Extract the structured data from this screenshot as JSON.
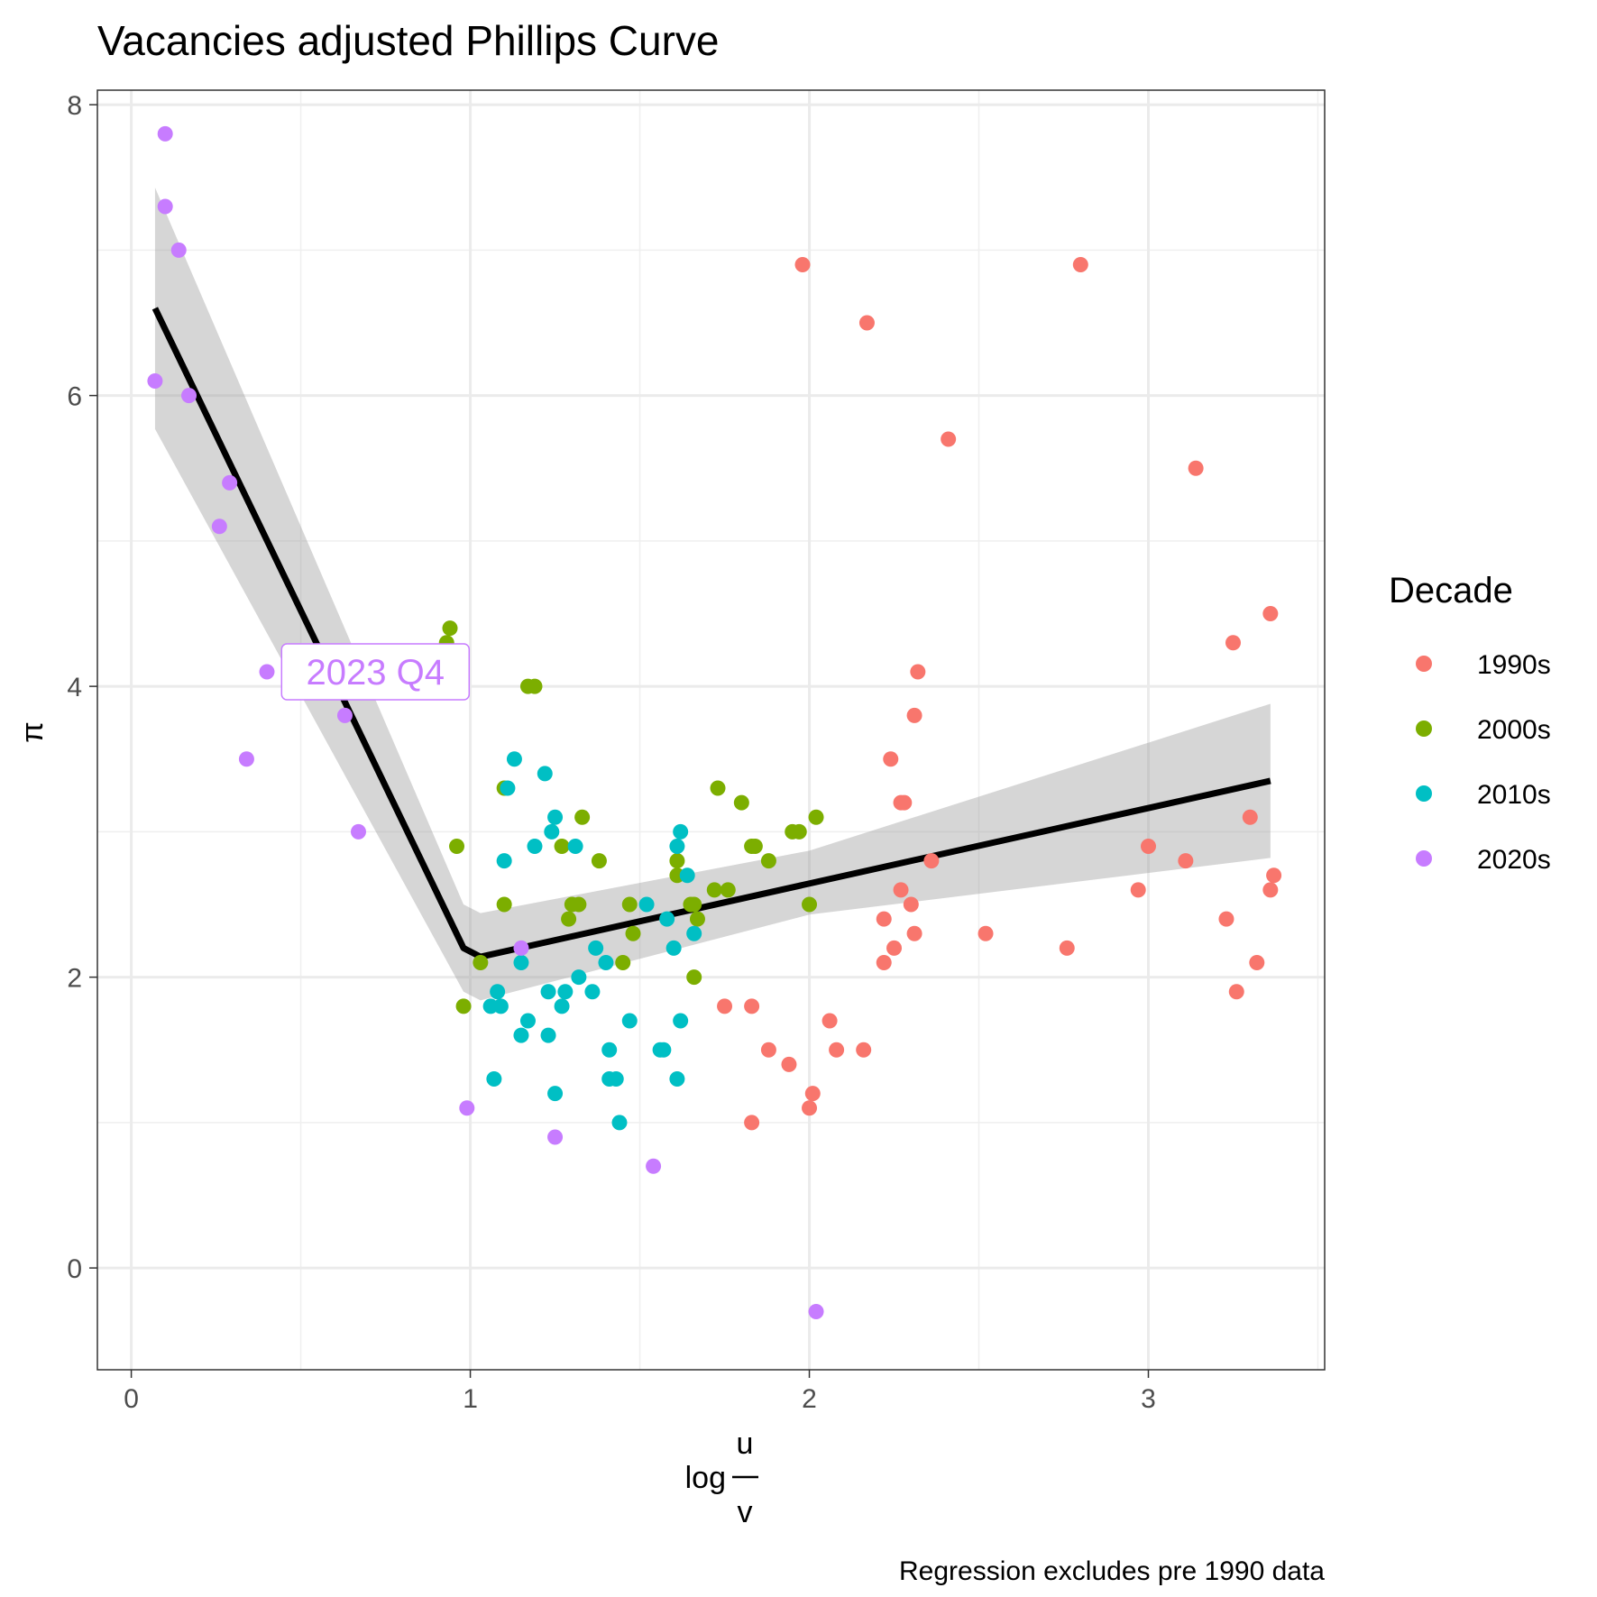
{
  "chart_data": {
    "type": "scatter",
    "title": "Vacancies adjusted Phillips Curve",
    "xlabel": {
      "prefix": "log",
      "numerator": "u",
      "denominator": "v"
    },
    "ylabel": "π",
    "caption": "Regression excludes pre 1990 data",
    "xlim": [
      -0.1,
      3.52
    ],
    "ylim": [
      -0.7,
      8.1
    ],
    "x_ticks": [
      0,
      1,
      2,
      3
    ],
    "x_tick_labels": [
      "0",
      "1",
      "2",
      "3"
    ],
    "y_ticks": [
      0,
      2,
      4,
      6,
      8
    ],
    "y_tick_labels": [
      "0",
      "2",
      "4",
      "6",
      "8"
    ],
    "grid": true,
    "legend": {
      "title": "Decade",
      "position": "right",
      "entries": [
        "1990s",
        "2000s",
        "2010s",
        "2020s"
      ]
    },
    "colors": {
      "1990s": "#F8766D",
      "2000s": "#7CAE00",
      "2010s": "#00BFC4",
      "2020s": "#C77CFF",
      "fit_line": "#000000",
      "ribbon": "#999999"
    },
    "series": [
      {
        "name": "1990s",
        "points": [
          [
            1.98,
            6.9
          ],
          [
            2.8,
            6.9
          ],
          [
            2.17,
            6.5
          ],
          [
            2.41,
            5.7
          ],
          [
            3.14,
            5.5
          ],
          [
            3.36,
            4.5
          ],
          [
            3.25,
            4.3
          ],
          [
            2.32,
            4.1
          ],
          [
            2.31,
            3.8
          ],
          [
            2.24,
            3.5
          ],
          [
            2.27,
            3.2
          ],
          [
            2.28,
            3.2
          ],
          [
            3.3,
            3.1
          ],
          [
            3.0,
            2.9
          ],
          [
            2.36,
            2.8
          ],
          [
            3.11,
            2.8
          ],
          [
            3.37,
            2.7
          ],
          [
            2.97,
            2.6
          ],
          [
            2.27,
            2.6
          ],
          [
            3.36,
            2.6
          ],
          [
            2.3,
            2.5
          ],
          [
            2.22,
            2.4
          ],
          [
            3.23,
            2.4
          ],
          [
            2.52,
            2.3
          ],
          [
            2.31,
            2.3
          ],
          [
            2.25,
            2.2
          ],
          [
            2.76,
            2.2
          ],
          [
            2.22,
            2.1
          ],
          [
            3.32,
            2.1
          ],
          [
            3.26,
            1.9
          ],
          [
            1.75,
            1.8
          ],
          [
            1.83,
            1.8
          ],
          [
            2.06,
            1.7
          ],
          [
            1.88,
            1.5
          ],
          [
            2.08,
            1.5
          ],
          [
            2.16,
            1.5
          ],
          [
            1.94,
            1.4
          ],
          [
            2.01,
            1.2
          ],
          [
            2.0,
            1.1
          ],
          [
            1.83,
            1.0
          ]
        ]
      },
      {
        "name": "2000s",
        "points": [
          [
            0.94,
            4.4
          ],
          [
            0.93,
            4.3
          ],
          [
            1.17,
            4.0
          ],
          [
            1.19,
            4.0
          ],
          [
            1.1,
            3.3
          ],
          [
            1.73,
            3.3
          ],
          [
            1.8,
            3.2
          ],
          [
            1.33,
            3.1
          ],
          [
            2.02,
            3.1
          ],
          [
            1.95,
            3.0
          ],
          [
            1.97,
            3.0
          ],
          [
            0.96,
            2.9
          ],
          [
            1.27,
            2.9
          ],
          [
            1.83,
            2.9
          ],
          [
            1.84,
            2.9
          ],
          [
            1.38,
            2.8
          ],
          [
            1.61,
            2.8
          ],
          [
            1.88,
            2.8
          ],
          [
            1.61,
            2.7
          ],
          [
            1.72,
            2.6
          ],
          [
            1.76,
            2.6
          ],
          [
            1.1,
            2.5
          ],
          [
            1.3,
            2.5
          ],
          [
            1.32,
            2.5
          ],
          [
            1.47,
            2.5
          ],
          [
            1.65,
            2.5
          ],
          [
            1.66,
            2.5
          ],
          [
            2.0,
            2.5
          ],
          [
            1.29,
            2.4
          ],
          [
            1.67,
            2.4
          ],
          [
            1.48,
            2.3
          ],
          [
            1.03,
            2.1
          ],
          [
            1.45,
            2.1
          ],
          [
            1.66,
            2.0
          ],
          [
            0.98,
            1.8
          ]
        ]
      },
      {
        "name": "2010s",
        "points": [
          [
            1.13,
            3.5
          ],
          [
            1.22,
            3.4
          ],
          [
            1.11,
            3.3
          ],
          [
            1.25,
            3.1
          ],
          [
            1.24,
            3.0
          ],
          [
            1.62,
            3.0
          ],
          [
            1.19,
            2.9
          ],
          [
            1.31,
            2.9
          ],
          [
            1.61,
            2.9
          ],
          [
            1.1,
            2.8
          ],
          [
            1.64,
            2.7
          ],
          [
            1.52,
            2.5
          ],
          [
            1.58,
            2.4
          ],
          [
            1.66,
            2.3
          ],
          [
            1.37,
            2.2
          ],
          [
            1.6,
            2.2
          ],
          [
            1.15,
            2.1
          ],
          [
            1.4,
            2.1
          ],
          [
            1.32,
            2.0
          ],
          [
            1.08,
            1.9
          ],
          [
            1.23,
            1.9
          ],
          [
            1.28,
            1.9
          ],
          [
            1.36,
            1.9
          ],
          [
            1.06,
            1.8
          ],
          [
            1.09,
            1.8
          ],
          [
            1.27,
            1.8
          ],
          [
            1.17,
            1.7
          ],
          [
            1.47,
            1.7
          ],
          [
            1.62,
            1.7
          ],
          [
            1.15,
            1.6
          ],
          [
            1.23,
            1.6
          ],
          [
            1.41,
            1.5
          ],
          [
            1.57,
            1.5
          ],
          [
            1.56,
            1.5
          ],
          [
            1.07,
            1.3
          ],
          [
            1.41,
            1.3
          ],
          [
            1.43,
            1.3
          ],
          [
            1.61,
            1.3
          ],
          [
            1.25,
            1.2
          ],
          [
            1.44,
            1.0
          ]
        ]
      },
      {
        "name": "2020s",
        "points": [
          [
            0.1,
            7.8
          ],
          [
            0.1,
            7.3
          ],
          [
            0.14,
            7.0
          ],
          [
            0.07,
            6.1
          ],
          [
            0.17,
            6.0
          ],
          [
            0.29,
            5.4
          ],
          [
            0.26,
            5.1
          ],
          [
            0.4,
            4.1
          ],
          [
            0.63,
            3.8
          ],
          [
            0.34,
            3.5
          ],
          [
            0.67,
            3.0
          ],
          [
            1.15,
            2.2
          ],
          [
            0.99,
            1.1
          ],
          [
            1.25,
            0.9
          ],
          [
            1.54,
            0.7
          ],
          [
            2.02,
            -0.3
          ]
        ]
      }
    ],
    "fit": {
      "line": [
        [
          0.07,
          6.6
        ],
        [
          0.98,
          2.2
        ],
        [
          1.03,
          2.14
        ],
        [
          3.36,
          3.35
        ]
      ],
      "ribbon_upper": [
        [
          0.07,
          7.43
        ],
        [
          0.98,
          2.5
        ],
        [
          1.03,
          2.44
        ],
        [
          2.0,
          2.87
        ],
        [
          3.36,
          3.88
        ]
      ],
      "ribbon_lower": [
        [
          0.07,
          5.77
        ],
        [
          0.98,
          1.9
        ],
        [
          1.03,
          1.84
        ],
        [
          2.0,
          2.43
        ],
        [
          3.36,
          2.82
        ]
      ]
    },
    "annotation": {
      "text": "2023 Q4",
      "x": 0.72,
      "y": 4.1
    }
  }
}
